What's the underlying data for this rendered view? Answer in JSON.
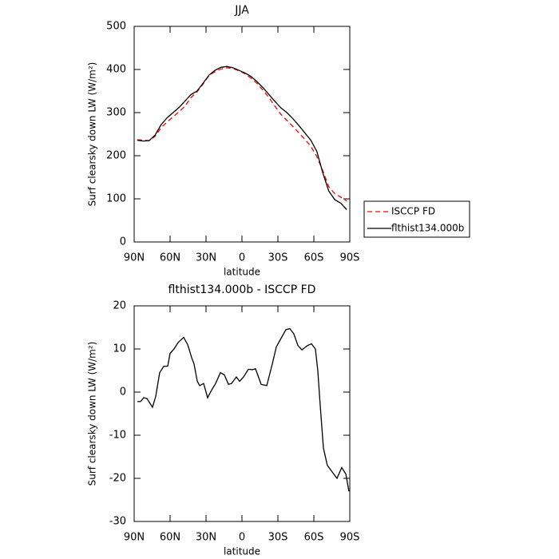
{
  "chart_data": [
    {
      "type": "line",
      "title": "JJA",
      "xlabel": "latitude",
      "ylabel": "Surf clearsky down LW (W/m²)",
      "x": [
        87.5,
        82.5,
        77.5,
        72.5,
        67.5,
        62.5,
        57.5,
        52.5,
        47.5,
        42.5,
        37.5,
        32.5,
        27.5,
        22.5,
        17.5,
        12.5,
        7.5,
        2.5,
        -2.5,
        -7.5,
        -12.5,
        -17.5,
        -22.5,
        -27.5,
        -32.5,
        -37.5,
        -42.5,
        -47.5,
        -52.5,
        -57.5,
        -62.5,
        -67.5,
        -72.5,
        -77.5,
        -82.5,
        -87.5
      ],
      "series": [
        {
          "name": "ISCCP FD",
          "color": "#ff0000",
          "dashed": true,
          "values": [
            237,
            236,
            235,
            245,
            265,
            278,
            290,
            302,
            315,
            335,
            348,
            366,
            386,
            395,
            401,
            404,
            402,
            397,
            390,
            380,
            368,
            352,
            335,
            315,
            296,
            282,
            268,
            253,
            238,
            222,
            198,
            165,
            128,
            112,
            104,
            95
          ]
        },
        {
          "name": "flthist134.000b",
          "color": "#000000",
          "dashed": false,
          "values": [
            236,
            234,
            235,
            248,
            272,
            288,
            300,
            312,
            327,
            342,
            350,
            368,
            387,
            398,
            405,
            407,
            404,
            398,
            392,
            384,
            372,
            358,
            342,
            326,
            311,
            300,
            286,
            270,
            253,
            236,
            210,
            160,
            118,
            98,
            90,
            75
          ]
        }
      ],
      "xlim": [
        90,
        -90
      ],
      "xticks": [
        {
          "value": 90,
          "label": "90N"
        },
        {
          "value": 60,
          "label": "60N"
        },
        {
          "value": 30,
          "label": "30N"
        },
        0,
        {
          "value": -30,
          "label": "30S"
        },
        {
          "value": -60,
          "label": "60S"
        },
        {
          "value": -90,
          "label": "90S"
        }
      ],
      "ylim": [
        0,
        500
      ],
      "yticks": [
        0,
        100,
        200,
        300,
        400,
        500
      ],
      "legend": "right"
    },
    {
      "type": "line",
      "title": "flthist134.000b - ISCCP FD",
      "xlabel": "latitude",
      "ylabel": "Surf clearsky down LW (W/m²)",
      "x": [
        87.3,
        84.7,
        82,
        79.3,
        74.7,
        72,
        68.7,
        65.3,
        62,
        60,
        56.7,
        53.3,
        48.7,
        45.3,
        42,
        40,
        37.3,
        35.3,
        32,
        28.7,
        25.3,
        22,
        18,
        14.7,
        11.3,
        8.7,
        4.7,
        2,
        -1.3,
        -5.3,
        -8.7,
        -11.3,
        -16,
        -20.7,
        -25.3,
        -28.7,
        -32.7,
        -36.7,
        -40,
        -43.3,
        -46.7,
        -50,
        -54.7,
        -58,
        -61.3,
        -63.3,
        -65.3,
        -68,
        -71.3,
        -75.3,
        -79.3,
        -83.3,
        -86.7,
        -89.3
      ],
      "series": [
        {
          "color": "#000000",
          "values": [
            -2.2,
            -2.2,
            -1.3,
            -1.5,
            -3.5,
            -1,
            4.5,
            6,
            6,
            9,
            10,
            11.5,
            12.7,
            11,
            8,
            6.5,
            2.5,
            1.5,
            2,
            -1.3,
            0.5,
            2,
            4.5,
            4,
            1.8,
            2,
            3.5,
            2.5,
            3.5,
            5.3,
            5.2,
            5.4,
            1.8,
            1.5,
            6.5,
            10.5,
            12.5,
            14.5,
            14.7,
            13.5,
            10.8,
            9.8,
            10.8,
            11.2,
            10,
            5,
            -3,
            -13,
            -17,
            -18.5,
            -20,
            -17.5,
            -19,
            -23
          ]
        }
      ],
      "xlim": [
        90,
        -90
      ],
      "xticks": [
        {
          "value": 90,
          "label": "90N"
        },
        {
          "value": 60,
          "label": "60N"
        },
        {
          "value": 30,
          "label": "30N"
        },
        0,
        {
          "value": -30,
          "label": "30S"
        },
        {
          "value": -60,
          "label": "60S"
        },
        {
          "value": -90,
          "label": "90S"
        }
      ],
      "ylim": [
        -30,
        20
      ],
      "yticks": [
        -30,
        -20,
        -10,
        0,
        10,
        20
      ]
    }
  ]
}
